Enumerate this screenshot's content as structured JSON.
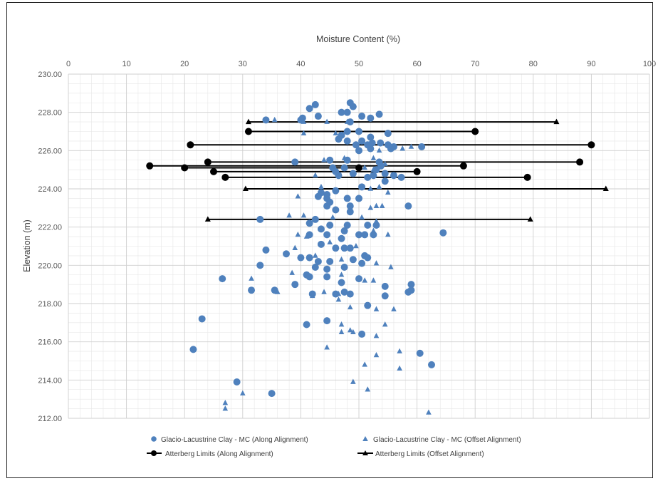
{
  "chart_data": {
    "type": "scatter",
    "title": "",
    "xlabel": "Moisture Content (%)",
    "ylabel": "Elevation (m)",
    "xlim": [
      0,
      100
    ],
    "ylim": [
      212,
      230
    ],
    "x_ticks": [
      "0",
      "10",
      "20",
      "30",
      "40",
      "50",
      "60",
      "70",
      "80",
      "90",
      "100"
    ],
    "y_ticks": [
      "212.00",
      "214.00",
      "216.00",
      "218.00",
      "220.00",
      "222.00",
      "224.00",
      "226.00",
      "228.00",
      "230.00"
    ],
    "x_axis_position": "top",
    "grid": true,
    "legend_position": "bottom",
    "colors": {
      "mc": "#4f81bd",
      "atterberg": "#000000"
    },
    "series": [
      {
        "name": "Glacio-Lacustrine Clay - MC (Along Alignment)",
        "marker": "circle",
        "points": [
          [
            42.5,
            228.4
          ],
          [
            48.5,
            228.5
          ],
          [
            41.5,
            228.2
          ],
          [
            49,
            228.3
          ],
          [
            47,
            228.0
          ],
          [
            48,
            228.0
          ],
          [
            43,
            227.8
          ],
          [
            50.5,
            227.8
          ],
          [
            52,
            227.7
          ],
          [
            53.5,
            227.9
          ],
          [
            34,
            227.6
          ],
          [
            40,
            227.6
          ],
          [
            40.3,
            227.7
          ],
          [
            48.5,
            227.5
          ],
          [
            48,
            227.0
          ],
          [
            50,
            227.0
          ],
          [
            55,
            226.9
          ],
          [
            47,
            226.8
          ],
          [
            52,
            226.7
          ],
          [
            46.5,
            226.6
          ],
          [
            48,
            226.5
          ],
          [
            50.5,
            226.5
          ],
          [
            49.5,
            226.3
          ],
          [
            51.5,
            226.3
          ],
          [
            52.3,
            226.4
          ],
          [
            53.7,
            226.4
          ],
          [
            55,
            226.3
          ],
          [
            56,
            226.2
          ],
          [
            60.8,
            226.2
          ],
          [
            50,
            226.0
          ],
          [
            52,
            226.1
          ],
          [
            55.5,
            226.1
          ],
          [
            39,
            225.4
          ],
          [
            45,
            225.5
          ],
          [
            48,
            225.5
          ],
          [
            53.5,
            225.4
          ],
          [
            45.5,
            225.1
          ],
          [
            47.5,
            225.1
          ],
          [
            46,
            224.9
          ],
          [
            53,
            225.0
          ],
          [
            53.8,
            225.2
          ],
          [
            54.5,
            224.8
          ],
          [
            46.5,
            224.7
          ],
          [
            49,
            224.8
          ],
          [
            51.5,
            224.6
          ],
          [
            52.5,
            224.7
          ],
          [
            56,
            224.7
          ],
          [
            57.3,
            224.6
          ],
          [
            54.5,
            224.4
          ],
          [
            50.5,
            224.1
          ],
          [
            46,
            223.9
          ],
          [
            43.5,
            223.8
          ],
          [
            44.5,
            223.7
          ],
          [
            43,
            223.6
          ],
          [
            44.5,
            223.5
          ],
          [
            48,
            223.5
          ],
          [
            50,
            223.5
          ],
          [
            45,
            223.3
          ],
          [
            44.5,
            223.1
          ],
          [
            48.5,
            223.1
          ],
          [
            46,
            222.9
          ],
          [
            48.5,
            222.8
          ],
          [
            58.5,
            223.1
          ],
          [
            42.5,
            222.4
          ],
          [
            33,
            222.4
          ],
          [
            41.5,
            222.2
          ],
          [
            45,
            222.1
          ],
          [
            48,
            222.1
          ],
          [
            51.5,
            222.1
          ],
          [
            53,
            222.1
          ],
          [
            43.5,
            221.9
          ],
          [
            47.5,
            221.8
          ],
          [
            44.5,
            221.6
          ],
          [
            41.5,
            221.6
          ],
          [
            50,
            221.6
          ],
          [
            51,
            221.6
          ],
          [
            52.5,
            221.6
          ],
          [
            47,
            221.4
          ],
          [
            64.5,
            221.7
          ],
          [
            43.5,
            221.1
          ],
          [
            34,
            220.8
          ],
          [
            37.5,
            220.6
          ],
          [
            46,
            220.9
          ],
          [
            47.5,
            220.9
          ],
          [
            48.5,
            220.9
          ],
          [
            51,
            220.5
          ],
          [
            51.5,
            220.4
          ],
          [
            40,
            220.4
          ],
          [
            41.5,
            220.4
          ],
          [
            43,
            220.2
          ],
          [
            45,
            220.2
          ],
          [
            49,
            220.3
          ],
          [
            50.5,
            220.1
          ],
          [
            33,
            220.0
          ],
          [
            42.5,
            219.9
          ],
          [
            44.5,
            219.8
          ],
          [
            47.5,
            219.9
          ],
          [
            41,
            219.5
          ],
          [
            41.5,
            219.4
          ],
          [
            44.5,
            219.4
          ],
          [
            50,
            219.3
          ],
          [
            26.5,
            219.3
          ],
          [
            39,
            219.0
          ],
          [
            47,
            219.1
          ],
          [
            54.5,
            218.9
          ],
          [
            59,
            219.0
          ],
          [
            31.5,
            218.7
          ],
          [
            35.5,
            218.7
          ],
          [
            46,
            218.5
          ],
          [
            47.5,
            218.6
          ],
          [
            48.5,
            218.5
          ],
          [
            42,
            218.5
          ],
          [
            54.5,
            218.4
          ],
          [
            58.5,
            218.6
          ],
          [
            59,
            218.7
          ],
          [
            51.5,
            217.9
          ],
          [
            23,
            217.2
          ],
          [
            44.5,
            217.1
          ],
          [
            41,
            216.9
          ],
          [
            50.5,
            216.4
          ],
          [
            21.5,
            215.6
          ],
          [
            60.5,
            215.4
          ],
          [
            62.5,
            214.8
          ],
          [
            29,
            213.9
          ],
          [
            35,
            213.3
          ]
        ]
      },
      {
        "name": "Glacio-Lacustrine Clay - MC (Offset Alignment)",
        "marker": "triangle",
        "points": [
          [
            35.5,
            227.6
          ],
          [
            44.5,
            227.5
          ],
          [
            48,
            227.5
          ],
          [
            40.5,
            227.5
          ],
          [
            40.5,
            226.9
          ],
          [
            46,
            226.9
          ],
          [
            53.5,
            226.0
          ],
          [
            57.5,
            226.1
          ],
          [
            59,
            226.2
          ],
          [
            44,
            225.5
          ],
          [
            47.5,
            225.6
          ],
          [
            52.5,
            225.6
          ],
          [
            54.5,
            225.3
          ],
          [
            51,
            225.1
          ],
          [
            52.5,
            225.0
          ],
          [
            42.5,
            224.7
          ],
          [
            43.5,
            224.1
          ],
          [
            53.5,
            224.1
          ],
          [
            55,
            223.8
          ],
          [
            39.5,
            223.6
          ],
          [
            52,
            224.0
          ],
          [
            52,
            223.0
          ],
          [
            53,
            223.1
          ],
          [
            54,
            223.1
          ],
          [
            38,
            222.6
          ],
          [
            40.5,
            222.6
          ],
          [
            45.5,
            222.5
          ],
          [
            50.5,
            222.5
          ],
          [
            53,
            222.3
          ],
          [
            52.5,
            221.8
          ],
          [
            55,
            221.6
          ],
          [
            39.5,
            221.6
          ],
          [
            41,
            221.5
          ],
          [
            45,
            221.2
          ],
          [
            39,
            220.9
          ],
          [
            42.5,
            220.5
          ],
          [
            47,
            220.3
          ],
          [
            49.5,
            221.0
          ],
          [
            53,
            220.1
          ],
          [
            55.5,
            219.9
          ],
          [
            31.5,
            219.3
          ],
          [
            38.5,
            219.6
          ],
          [
            47,
            219.5
          ],
          [
            51,
            219.2
          ],
          [
            52.5,
            219.2
          ],
          [
            44,
            218.6
          ],
          [
            46.5,
            218.5
          ],
          [
            36,
            218.6
          ],
          [
            42,
            218.4
          ],
          [
            46.5,
            218.2
          ],
          [
            48.5,
            217.8
          ],
          [
            53,
            217.7
          ],
          [
            56,
            217.7
          ],
          [
            47,
            216.9
          ],
          [
            48.5,
            216.6
          ],
          [
            49,
            216.5
          ],
          [
            47,
            216.5
          ],
          [
            53,
            216.3
          ],
          [
            54.5,
            216.9
          ],
          [
            44.5,
            215.7
          ],
          [
            57,
            215.5
          ],
          [
            53,
            215.3
          ],
          [
            51,
            214.8
          ],
          [
            57,
            214.6
          ],
          [
            49,
            213.9
          ],
          [
            51.5,
            213.5
          ],
          [
            30,
            213.3
          ],
          [
            27,
            212.8
          ],
          [
            27,
            212.5
          ],
          [
            62,
            212.3
          ]
        ]
      },
      {
        "name": "Atterberg Limits (Along Alignment)",
        "marker": "circle-line",
        "segments": [
          [
            [
              31,
              227.0
            ],
            [
              70,
              227.0
            ]
          ],
          [
            [
              21,
              226.3
            ],
            [
              90,
              226.3
            ]
          ],
          [
            [
              24,
              225.4
            ],
            [
              88,
              225.4
            ]
          ],
          [
            [
              14,
              225.2
            ],
            [
              68,
              225.2
            ]
          ],
          [
            [
              20,
              225.1
            ],
            [
              50,
              225.1
            ]
          ],
          [
            [
              25,
              224.9
            ],
            [
              60,
              224.9
            ]
          ],
          [
            [
              27,
              224.6
            ],
            [
              79,
              224.6
            ]
          ]
        ]
      },
      {
        "name": "Atterberg Limits (Offset Alignment)",
        "marker": "triangle-line",
        "segments": [
          [
            [
              31,
              227.5
            ],
            [
              84,
              227.5
            ]
          ],
          [
            [
              30.5,
              224.0
            ],
            [
              92.5,
              224.0
            ]
          ],
          [
            [
              24,
              222.4
            ],
            [
              79.5,
              222.4
            ]
          ]
        ]
      }
    ]
  }
}
